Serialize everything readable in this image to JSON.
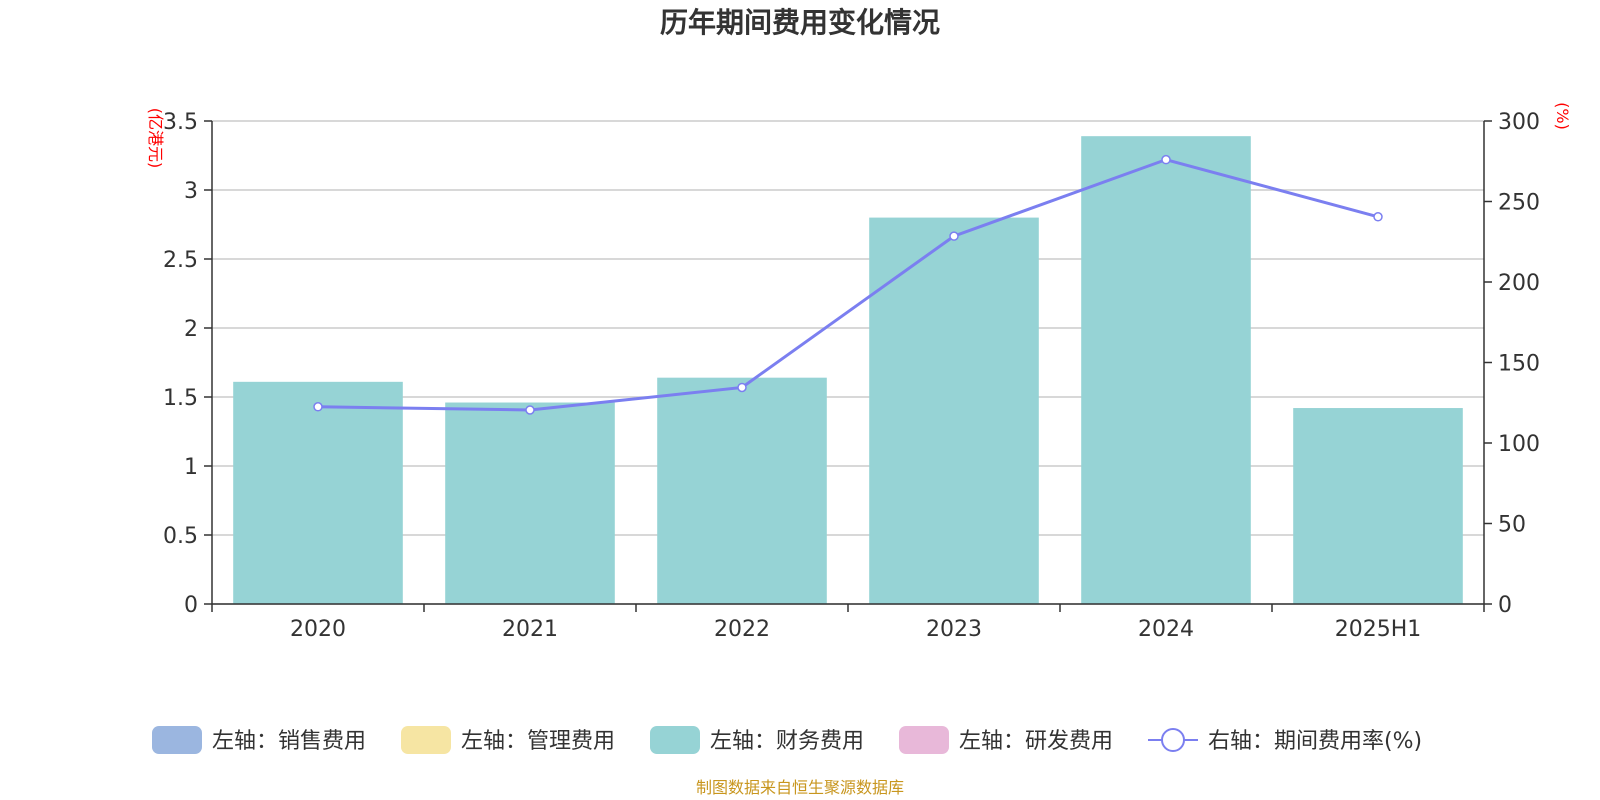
{
  "chart_data": {
    "type": "bar",
    "title": "历年期间费用变化情况",
    "categories": [
      "2020",
      "2021",
      "2022",
      "2023",
      "2024",
      "2025H1"
    ],
    "series": [
      {
        "name": "左轴：销售费用",
        "axis": "left",
        "type": "bar",
        "color": "#9bb6e0",
        "values": [
          null,
          null,
          null,
          null,
          null,
          null
        ]
      },
      {
        "name": "左轴：管理费用",
        "axis": "left",
        "type": "bar",
        "color": "#f6e5a3",
        "values": [
          null,
          null,
          null,
          null,
          null,
          null
        ]
      },
      {
        "name": "左轴：财务费用",
        "axis": "left",
        "type": "bar",
        "color": "#96d3d5",
        "values": [
          1.61,
          1.46,
          1.64,
          2.8,
          3.39,
          1.42
        ]
      },
      {
        "name": "左轴：研发费用",
        "axis": "left",
        "type": "bar",
        "color": "#e8b8d9",
        "values": [
          null,
          null,
          null,
          null,
          null,
          null
        ]
      },
      {
        "name": "右轴：期间费用率(%)",
        "axis": "right",
        "type": "line",
        "color": "#7b7ff0",
        "values": [
          122.5,
          120.5,
          134.5,
          228.5,
          276.0,
          240.5
        ]
      }
    ],
    "left_axis": {
      "unit": "(亿港元)",
      "ylim": [
        0,
        3.5
      ],
      "ticks": [
        "0",
        "0.5",
        "1",
        "1.5",
        "2",
        "2.5",
        "3",
        "3.5"
      ]
    },
    "right_axis": {
      "unit": "(%)",
      "ylim": [
        0,
        300
      ],
      "ticks": [
        "0",
        "50",
        "100",
        "150",
        "200",
        "250",
        "300"
      ]
    },
    "grid": true,
    "legend_position": "bottom"
  },
  "source_note": "制图数据来自恒生聚源数据库"
}
